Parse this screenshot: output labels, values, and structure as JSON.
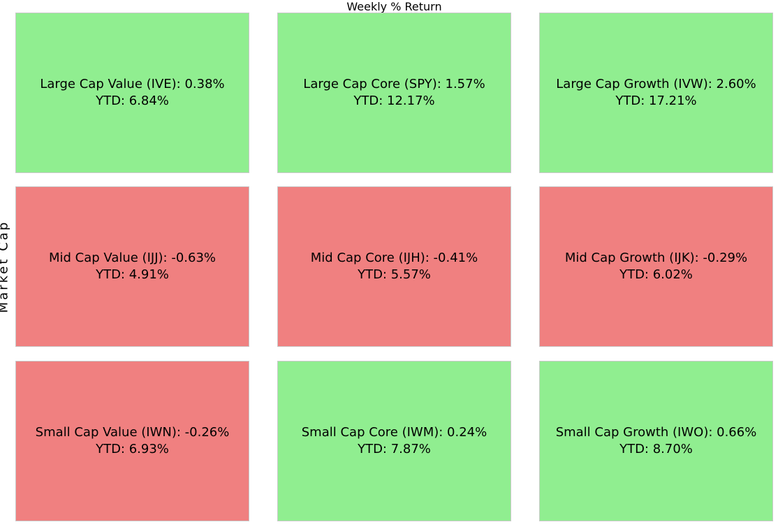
{
  "title": "Weekly % Return",
  "ylabel": "Market Cap",
  "colors": {
    "positive": "#90ee90",
    "negative": "#f08080",
    "cell_border": "#c9c9c9",
    "text": "#000000",
    "background": "#ffffff"
  },
  "chart_data": {
    "type": "heatmap",
    "title": "Weekly % Return",
    "xlabel": "",
    "ylabel": "Market Cap",
    "row_categories": [
      "Large Cap",
      "Mid Cap",
      "Small Cap"
    ],
    "col_categories": [
      "Value",
      "Core",
      "Growth"
    ],
    "color_rule": "cell is green (#90ee90) when weekly % return is positive, red (#f08080) when negative",
    "legend": "none",
    "grid": "3x3 style box, white gaps between cells",
    "cells": [
      {
        "row": "Large Cap",
        "col": "Value",
        "ticker": "IVE",
        "weekly_pct": 0.38,
        "ytd_pct": 6.84,
        "sentiment": "positive",
        "line1": "Large Cap Value (IVE): 0.38%",
        "line2": "YTD: 6.84%"
      },
      {
        "row": "Large Cap",
        "col": "Core",
        "ticker": "SPY",
        "weekly_pct": 1.57,
        "ytd_pct": 12.17,
        "sentiment": "positive",
        "line1": "Large Cap Core (SPY): 1.57%",
        "line2": "YTD: 12.17%"
      },
      {
        "row": "Large Cap",
        "col": "Growth",
        "ticker": "IVW",
        "weekly_pct": 2.6,
        "ytd_pct": 17.21,
        "sentiment": "positive",
        "line1": "Large Cap Growth (IVW): 2.60%",
        "line2": "YTD: 17.21%"
      },
      {
        "row": "Mid Cap",
        "col": "Value",
        "ticker": "IJJ",
        "weekly_pct": -0.63,
        "ytd_pct": 4.91,
        "sentiment": "negative",
        "line1": "Mid Cap Value (IJJ): -0.63%",
        "line2": "YTD: 4.91%"
      },
      {
        "row": "Mid Cap",
        "col": "Core",
        "ticker": "IJH",
        "weekly_pct": -0.41,
        "ytd_pct": 5.57,
        "sentiment": "negative",
        "line1": "Mid Cap Core (IJH): -0.41%",
        "line2": "YTD: 5.57%"
      },
      {
        "row": "Mid Cap",
        "col": "Growth",
        "ticker": "IJK",
        "weekly_pct": -0.29,
        "ytd_pct": 6.02,
        "sentiment": "negative",
        "line1": "Mid Cap Growth (IJK): -0.29%",
        "line2": "YTD: 6.02%"
      },
      {
        "row": "Small Cap",
        "col": "Value",
        "ticker": "IWN",
        "weekly_pct": -0.26,
        "ytd_pct": 6.93,
        "sentiment": "negative",
        "line1": "Small Cap Value (IWN): -0.26%",
        "line2": "YTD: 6.93%"
      },
      {
        "row": "Small Cap",
        "col": "Core",
        "ticker": "IWM",
        "weekly_pct": 0.24,
        "ytd_pct": 7.87,
        "sentiment": "positive",
        "line1": "Small Cap Core (IWM): 0.24%",
        "line2": "YTD: 7.87%"
      },
      {
        "row": "Small Cap",
        "col": "Growth",
        "ticker": "IWO",
        "weekly_pct": 0.66,
        "ytd_pct": 8.7,
        "sentiment": "positive",
        "line1": "Small Cap Growth (IWO): 0.66%",
        "line2": "YTD: 8.70%"
      }
    ]
  }
}
